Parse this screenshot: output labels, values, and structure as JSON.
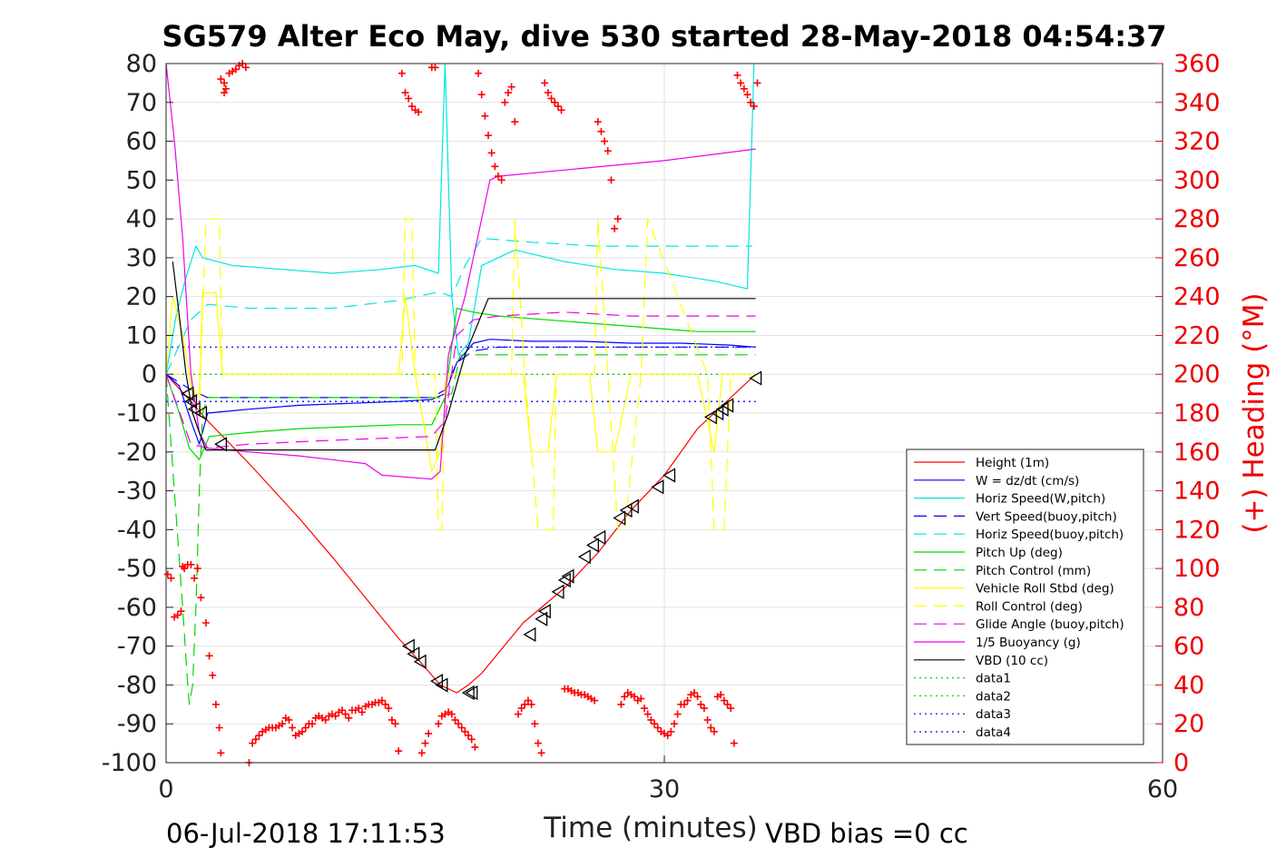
{
  "colors": {
    "height": "#ff0000",
    "w": "#0000ff",
    "horiz": "#00e5e5",
    "pitch": "#00d800",
    "roll": "#ffff00",
    "glide": "#ee00ee",
    "vbd": "#000000",
    "heading": "#ff0000",
    "heading_axis": "#ee0000"
  },
  "chart_data": {
    "type": "line",
    "title": "SG579 Alter Eco May, dive 530 started 28-May-2018 04:54:37",
    "xlabel": "Time (minutes)",
    "ylabel": "",
    "y2label": "(+) Heading (°M)",
    "xlim": [
      0,
      60
    ],
    "ylim": [
      -100,
      80
    ],
    "y2lim": [
      0,
      360
    ],
    "x_ticks": [
      "0",
      "30",
      "60"
    ],
    "x_tick_values": [
      0,
      30,
      60
    ],
    "y_ticks": [
      "80",
      "70",
      "60",
      "50",
      "40",
      "30",
      "20",
      "10",
      "0",
      "-10",
      "-20",
      "-30",
      "-40",
      "-50",
      "-60",
      "-70",
      "-80",
      "-90",
      "-100"
    ],
    "y_tick_values": [
      80,
      70,
      60,
      50,
      40,
      30,
      20,
      10,
      0,
      -10,
      -20,
      -30,
      -40,
      -50,
      -60,
      -70,
      -80,
      -90,
      -100
    ],
    "y2_ticks": [
      "360",
      "340",
      "320",
      "300",
      "280",
      "260",
      "240",
      "220",
      "200",
      "180",
      "160",
      "140",
      "120",
      "100",
      "80",
      "60",
      "40",
      "20",
      "0"
    ],
    "y2_tick_values": [
      360,
      340,
      320,
      300,
      280,
      260,
      240,
      220,
      200,
      180,
      160,
      140,
      120,
      100,
      80,
      60,
      40,
      20,
      0
    ],
    "grid": true,
    "legend_position": "bottom-right",
    "legend": [
      {
        "label": "Height (1m)",
        "color": "#ff0000",
        "dash": "solid"
      },
      {
        "label": "W = dz/dt (cm/s)",
        "color": "#0000ff",
        "dash": "solid"
      },
      {
        "label": "Horiz Speed(W,pitch)",
        "color": "#00e5e5",
        "dash": "solid"
      },
      {
        "label": "Vert Speed(buoy,pitch)",
        "color": "#0000ff",
        "dash": "dash"
      },
      {
        "label": "Horiz Speed(buoy,pitch)",
        "color": "#00e5e5",
        "dash": "dash"
      },
      {
        "label": "Pitch Up (deg)",
        "color": "#00d800",
        "dash": "solid"
      },
      {
        "label": "Pitch Control (mm)",
        "color": "#00d800",
        "dash": "dash"
      },
      {
        "label": "Vehicle Roll Stbd (deg)",
        "color": "#ffff00",
        "dash": "solid"
      },
      {
        "label": "Roll Control (deg)",
        "color": "#ffff00",
        "dash": "dash"
      },
      {
        "label": "Glide Angle (buoy,pitch)",
        "color": "#ee00ee",
        "dash": "dash"
      },
      {
        "label": "1/5 Buoyancy (g)",
        "color": "#ee00ee",
        "dash": "solid"
      },
      {
        "label": "VBD (10 cc)",
        "color": "#000000",
        "dash": "solid"
      },
      {
        "label": "data1",
        "color": "#00d800",
        "dash": "dot"
      },
      {
        "label": "data2",
        "color": "#00d800",
        "dash": "dot"
      },
      {
        "label": "data3",
        "color": "#0000ff",
        "dash": "dot"
      },
      {
        "label": "data4",
        "color": "#0000ff",
        "dash": "dot"
      }
    ],
    "series": [
      {
        "name": "Height (1m)",
        "axis": "left",
        "color": "#ff0000",
        "dash": "solid",
        "x": [
          0,
          1.5,
          2.5,
          5,
          8,
          10,
          14,
          15.5,
          16.5,
          17.5,
          18.2,
          19,
          21.5,
          24,
          26,
          28,
          30,
          32,
          34,
          35.5
        ],
        "y": [
          0,
          -7,
          -12,
          -23,
          -37,
          -47,
          -68,
          -75,
          -80,
          -82,
          -80,
          -77,
          -64,
          -55,
          -46,
          -35,
          -26,
          -14,
          -6,
          0
        ]
      },
      {
        "name": "W = dz/dt (cm/s)",
        "axis": "left",
        "color": "#0000ff",
        "dash": "solid",
        "x": [
          0,
          0.8,
          1.5,
          2,
          2.5,
          5,
          8,
          11,
          14,
          16,
          16.8,
          17.5,
          18.5,
          19.5,
          22,
          25,
          28,
          31,
          34,
          35.5
        ],
        "y": [
          0,
          -3,
          -12,
          -18,
          -10,
          -9,
          -8,
          -7.5,
          -7,
          -6.5,
          -5,
          3,
          8,
          9,
          8.5,
          8.5,
          8,
          8,
          7.5,
          7
        ]
      },
      {
        "name": "Horiz Speed(W,pitch)",
        "axis": "left",
        "color": "#00e5e5",
        "dash": "solid",
        "x": [
          0,
          0.6,
          1.2,
          1.8,
          2.2,
          4,
          7,
          10,
          13,
          15,
          16.4,
          16.8,
          17.2,
          17.6,
          18.2,
          19,
          21,
          24,
          27,
          30,
          33,
          35,
          35.4
        ],
        "y": [
          0,
          15,
          25,
          33,
          30,
          28,
          27,
          26,
          27,
          28,
          26,
          80,
          20,
          5,
          8,
          28,
          32,
          29,
          27,
          26,
          24,
          22,
          80
        ]
      },
      {
        "name": "Vert Speed(buoy,pitch)",
        "axis": "left",
        "color": "#0000ff",
        "dash": "dash",
        "x": [
          0,
          1.5,
          2.5,
          5,
          10,
          16,
          16.8,
          17.5,
          18.5,
          20,
          25,
          30,
          35.5
        ],
        "y": [
          0,
          -4,
          -6,
          -6,
          -6,
          -6,
          -4,
          3,
          6,
          7,
          7,
          7,
          7
        ]
      },
      {
        "name": "Horiz Speed(buoy,pitch)",
        "axis": "left",
        "color": "#00e5e5",
        "dash": "dash",
        "x": [
          0,
          1.5,
          2.5,
          5,
          10,
          14,
          16.2,
          16.6,
          17.2,
          18,
          19,
          22,
          26,
          30,
          34,
          35.3
        ],
        "y": [
          0,
          14,
          18,
          17,
          17,
          19,
          21,
          21,
          20,
          28,
          35,
          34,
          33,
          33,
          33,
          33
        ]
      },
      {
        "name": "Pitch Up (deg)",
        "axis": "left",
        "color": "#00d800",
        "dash": "solid",
        "x": [
          0,
          0.8,
          1.4,
          2,
          2.6,
          5,
          8,
          11,
          14,
          16,
          16.8,
          17.5,
          18.5,
          20,
          23,
          26,
          29,
          32,
          35.5
        ],
        "y": [
          0,
          -10,
          -19,
          -22,
          -16,
          -15,
          -14,
          -13.5,
          -13,
          -13,
          -6,
          17,
          16,
          15,
          14,
          13,
          12,
          11,
          11
        ]
      },
      {
        "name": "Pitch Control (mm)",
        "axis": "left",
        "color": "#00d800",
        "dash": "dash",
        "x": [
          0,
          1.0,
          1.3,
          1.4,
          1.6,
          1.8,
          2.0,
          2.2,
          2.5,
          16.5,
          17.2,
          17.7,
          35.5
        ],
        "y": [
          0,
          -60,
          -80,
          -85,
          -80,
          -60,
          -30,
          -10,
          -6,
          -6,
          -5,
          5,
          5
        ]
      },
      {
        "name": "Vehicle Roll Stbd (deg)",
        "axis": "left",
        "color": "#ffff00",
        "dash": "solid",
        "x": [
          0,
          0.4,
          1.0,
          1.6,
          2.0,
          2.2,
          3.0,
          3.4,
          14,
          14.4,
          15,
          16,
          16.5,
          17,
          17.6,
          20,
          21.5,
          22,
          23,
          23.5,
          24,
          25.5,
          26,
          27,
          28,
          29,
          30,
          32,
          33,
          33.5,
          35.5
        ],
        "y": [
          0,
          20,
          10,
          -5,
          -5,
          21,
          21,
          0,
          0,
          20,
          0,
          -25,
          -20,
          0,
          0,
          0,
          0,
          -20,
          -20,
          0,
          0,
          0,
          -20,
          -20,
          0,
          0,
          0,
          0,
          -20,
          0,
          0
        ]
      },
      {
        "name": "Roll Control (deg)",
        "axis": "left",
        "color": "#ffff00",
        "dash": "dash",
        "x": [
          0,
          1.5,
          2.0,
          2.4,
          3.2,
          3.4,
          14.2,
          14.4,
          14.8,
          15.0,
          16.2,
          16.4,
          16.6,
          16.8,
          20.8,
          21.0,
          21.6,
          22.4,
          23.3,
          23.5,
          25.8,
          26.0,
          27.2,
          27.6,
          28.6,
          29.0,
          32.6,
          33.0,
          33.6,
          34.0,
          35.5
        ],
        "y": [
          0,
          0,
          -10,
          40,
          40,
          0,
          0,
          40,
          40,
          0,
          0,
          -40,
          -40,
          0,
          0,
          40,
          0,
          -40,
          -40,
          0,
          0,
          40,
          -40,
          -40,
          0,
          40,
          0,
          -40,
          -40,
          0,
          0
        ]
      },
      {
        "name": "Glide Angle (buoy,pitch)",
        "axis": "left",
        "color": "#ee00ee",
        "dash": "dash",
        "x": [
          0,
          1.5,
          2.5,
          5,
          10,
          16,
          16.8,
          17.5,
          18.5,
          20,
          24,
          28,
          32,
          35.5
        ],
        "y": [
          0,
          -18,
          -19,
          -18,
          -17,
          -16,
          -12,
          10,
          14,
          15,
          16,
          15,
          15,
          15
        ]
      },
      {
        "name": "1/5 Buoyancy (g)",
        "axis": "left",
        "color": "#ee00ee",
        "dash": "solid",
        "x": [
          0,
          0.5,
          1.0,
          1.5,
          2.0,
          2.5,
          5,
          8,
          10,
          12,
          13,
          16,
          16.5,
          17,
          18,
          19,
          19.5,
          20,
          25,
          30,
          35.5
        ],
        "y": [
          80,
          60,
          35,
          0,
          -15,
          -19,
          -20,
          -21,
          -22,
          -23,
          -26,
          -27,
          -25,
          5,
          20,
          40,
          50,
          51,
          53,
          55,
          58
        ]
      },
      {
        "name": "VBD (10 cc)",
        "axis": "left",
        "color": "#000000",
        "dash": "solid",
        "x": [
          0.4,
          0.8,
          1.2,
          1.6,
          2.0,
          2.4,
          16.2,
          17.0,
          18.0,
          19.4,
          35.5
        ],
        "y": [
          29,
          15,
          0,
          -10,
          -15,
          -19.5,
          -19.5,
          -10,
          5,
          19.5,
          19.5
        ]
      }
    ],
    "reference_lines": [
      {
        "name": "data1",
        "axis": "left",
        "value": 0,
        "x_range": [
          0,
          35.5
        ],
        "color": "#00d800",
        "dash": "dot"
      },
      {
        "name": "data2",
        "axis": "left",
        "value": 0,
        "x_range": [
          0,
          35.5
        ],
        "color": "#00d800",
        "dash": "dot"
      },
      {
        "name": "data3",
        "axis": "left",
        "value": 7,
        "x_range": [
          0,
          35.5
        ],
        "color": "#0000ff",
        "dash": "dot"
      },
      {
        "name": "data4",
        "axis": "left",
        "value": -7,
        "x_range": [
          0,
          35.5
        ],
        "color": "#0000ff",
        "dash": "dot"
      }
    ],
    "vbd_markers": {
      "color": "#000000",
      "x": [
        1.3,
        1.5,
        1.7,
        2.1,
        3.3,
        14.6,
        14.9,
        15.3,
        16.3,
        16.6,
        18.2,
        18.4,
        21.9,
        22.6,
        22.8,
        23.6,
        24.0,
        24.2,
        25.2,
        25.7,
        26.1,
        27.3,
        27.7,
        28.1,
        29.6,
        30.3,
        32.8,
        33.2,
        33.5,
        33.8,
        35.5
      ],
      "y": [
        -5,
        -7,
        -9,
        -10,
        -18,
        -70,
        -72,
        -74,
        -79,
        -80,
        -82,
        -82,
        -67,
        -63,
        -61,
        -56,
        -53,
        -52,
        -47,
        -44,
        -42,
        -37,
        -35,
        -34,
        -29,
        -26,
        -11,
        -10,
        -9,
        -8,
        -1
      ]
    },
    "heading": {
      "name": "(+) Heading (°M)",
      "axis": "right",
      "color": "#ff0000",
      "marker": "+",
      "x": [
        0.1,
        0.3,
        0.5,
        0.7,
        0.9,
        1.0,
        1.1,
        1.3,
        1.5,
        1.7,
        1.9,
        2.1,
        2.4,
        2.6,
        2.8,
        3.0,
        3.2,
        3.3,
        3.5,
        3.3,
        3.5,
        3.6,
        3.8,
        4.0,
        4.2,
        4.4,
        4.6,
        4.8,
        5.0,
        5.2,
        5.4,
        5.6,
        5.8,
        6.0,
        6.2,
        6.4,
        6.6,
        6.8,
        7.0,
        7.2,
        7.4,
        7.6,
        7.8,
        8.0,
        8.2,
        8.4,
        8.6,
        8.8,
        9.0,
        9.2,
        9.4,
        9.6,
        9.8,
        10.0,
        10.2,
        10.4,
        10.6,
        10.8,
        11.0,
        11.2,
        11.4,
        11.6,
        11.8,
        12.0,
        12.2,
        12.4,
        12.6,
        12.8,
        13.0,
        13.2,
        13.4,
        13.6,
        13.8,
        14.0,
        14.2,
        14.4,
        14.6,
        14.8,
        15.0,
        15.2,
        15.4,
        15.6,
        15.8,
        16.0,
        16.2,
        16.4,
        16.6,
        16.8,
        17.0,
        17.2,
        17.4,
        17.6,
        17.8,
        18.0,
        18.2,
        18.4,
        18.6,
        18.8,
        19.0,
        19.2,
        19.4,
        19.6,
        19.8,
        20.0,
        20.2,
        20.4,
        20.6,
        20.8,
        21.0,
        21.2,
        21.4,
        21.6,
        21.8,
        22.0,
        22.2,
        22.4,
        22.6,
        22.8,
        23.0,
        23.2,
        23.4,
        23.6,
        23.8,
        24.0,
        24.2,
        24.4,
        24.6,
        24.8,
        25.0,
        25.2,
        25.4,
        25.6,
        25.8,
        26.0,
        26.2,
        26.4,
        26.6,
        26.8,
        27.0,
        27.2,
        27.4,
        27.6,
        27.8,
        28.0,
        28.2,
        28.4,
        28.6,
        28.8,
        29.0,
        29.2,
        29.4,
        29.6,
        29.8,
        30.0,
        30.2,
        30.4,
        30.6,
        30.8,
        31.0,
        31.2,
        31.4,
        31.6,
        31.8,
        32.0,
        32.2,
        32.4,
        32.6,
        32.8,
        33.0,
        33.2,
        33.4,
        33.6,
        33.8,
        34.0,
        34.2,
        34.4,
        34.6,
        34.8,
        35.0,
        35.2,
        35.4,
        35.6
      ],
      "y": [
        97,
        95,
        75,
        76,
        78,
        101,
        100,
        102,
        102,
        95,
        100,
        85,
        72,
        55,
        45,
        30,
        18,
        5,
        350,
        352,
        345,
        347,
        355,
        356,
        357,
        359,
        360,
        358,
        0,
        10,
        12,
        14,
        16,
        17,
        18,
        18,
        18,
        19,
        20,
        23,
        22,
        18,
        14,
        15,
        16,
        18,
        20,
        20,
        23,
        24,
        23,
        22,
        24,
        25,
        24,
        26,
        27,
        25,
        23,
        27,
        27,
        28,
        26,
        29,
        30,
        30,
        31,
        31,
        32,
        30,
        28,
        22,
        20,
        6,
        355,
        345,
        342,
        338,
        336,
        335,
        5,
        10,
        15,
        358,
        358,
        20,
        24,
        25,
        26,
        25,
        22,
        20,
        18,
        16,
        14,
        12,
        8,
        355,
        344,
        333,
        323,
        314,
        307,
        302,
        300,
        340,
        345,
        348,
        330,
        25,
        28,
        30,
        32,
        30,
        20,
        10,
        5,
        350,
        345,
        342,
        340,
        338,
        336,
        38,
        38,
        37,
        36,
        36,
        35,
        35,
        34,
        33,
        32,
        330,
        325,
        320,
        315,
        300,
        275,
        280,
        30,
        34,
        36,
        35,
        34,
        32,
        33,
        28,
        25,
        22,
        20,
        18,
        16,
        15,
        14,
        16,
        20,
        25,
        30,
        30,
        32,
        35,
        36,
        34,
        30,
        28,
        22,
        18,
        16,
        34,
        35,
        32,
        30,
        28,
        10,
        354,
        350,
        347,
        344,
        340,
        338,
        350
      ]
    }
  },
  "footer": {
    "timestamp": "06-Jul-2018 17:11:53",
    "vbd_bias": "VBD bias =0 cc"
  }
}
